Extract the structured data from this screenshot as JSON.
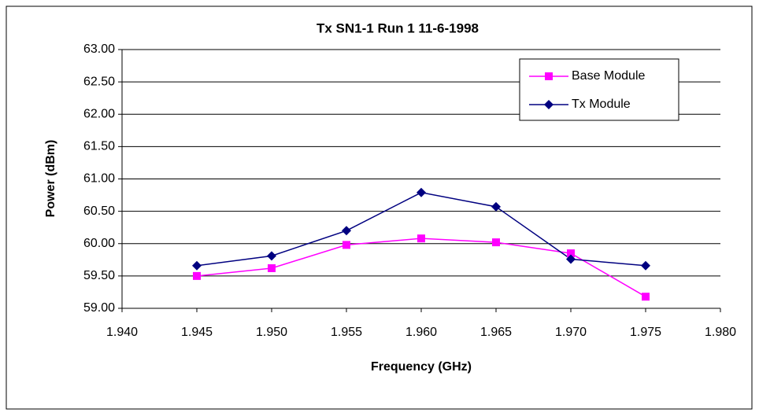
{
  "chart_data": {
    "type": "line",
    "title": "Tx SN1-1 Run 1 11-6-1998",
    "xlabel": "Frequency (GHz)",
    "ylabel": "Power (dBm)",
    "xlim": [
      1.94,
      1.98
    ],
    "xticks": [
      {
        "value": 1.94,
        "label": "1.940"
      },
      {
        "value": 1.945,
        "label": "1.945"
      },
      {
        "value": 1.95,
        "label": "1.950"
      },
      {
        "value": 1.955,
        "label": "1.955"
      },
      {
        "value": 1.96,
        "label": "1.960"
      },
      {
        "value": 1.965,
        "label": "1.965"
      },
      {
        "value": 1.97,
        "label": "1.970"
      },
      {
        "value": 1.975,
        "label": "1.975"
      },
      {
        "value": 1.98,
        "label": "1.980"
      }
    ],
    "ylim": [
      59,
      63
    ],
    "yticks": [
      {
        "value": 59,
        "label": "59.00"
      },
      {
        "value": 59.5,
        "label": "59.50"
      },
      {
        "value": 60,
        "label": "60.00"
      },
      {
        "value": 60.5,
        "label": "60.50"
      },
      {
        "value": 61,
        "label": "61.00"
      },
      {
        "value": 61.5,
        "label": "61.50"
      },
      {
        "value": 62,
        "label": "62.00"
      },
      {
        "value": 62.5,
        "label": "62.50"
      },
      {
        "value": 63,
        "label": "63.00"
      }
    ],
    "grid": true,
    "legend": "upper right",
    "x": [
      1.945,
      1.95,
      1.955,
      1.96,
      1.965,
      1.97,
      1.975
    ],
    "series": [
      {
        "name": "Base Module",
        "color": "#ff00ff",
        "marker": "square",
        "values": [
          59.5,
          59.62,
          59.98,
          60.08,
          60.02,
          59.85,
          59.18
        ]
      },
      {
        "name": "Tx Module",
        "color": "#000080",
        "marker": "diamond",
        "values": [
          59.66,
          59.81,
          60.2,
          60.79,
          60.57,
          59.76,
          59.66
        ]
      }
    ]
  }
}
